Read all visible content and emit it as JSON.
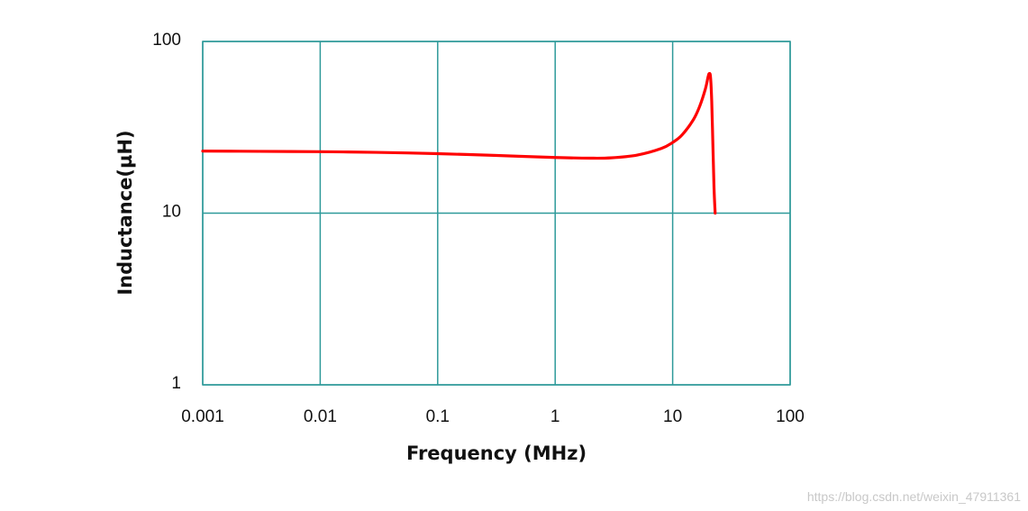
{
  "chart_data": {
    "type": "line",
    "xlabel": "Frequency (MHz)",
    "ylabel": "Inductance(µH)",
    "x_scale": "log",
    "y_scale": "log",
    "xlim": [
      0.001,
      100
    ],
    "ylim": [
      1,
      100
    ],
    "grid": true,
    "x_ticks": [
      "0.001",
      "0.01",
      "0.1",
      "1",
      "10",
      "100"
    ],
    "y_ticks": [
      "1",
      "10",
      "100"
    ],
    "series": [
      {
        "color": "#ff0000",
        "x": [
          0.001,
          0.003,
          0.01,
          0.03,
          0.1,
          0.3,
          1,
          2,
          3,
          5,
          8,
          10,
          12,
          15,
          17,
          19,
          20,
          20.5,
          21,
          21.5,
          22,
          22.5,
          23
        ],
        "y": [
          23,
          22.9,
          22.8,
          22.6,
          22.2,
          21.7,
          21.1,
          20.9,
          21.0,
          21.8,
          23.8,
          25.8,
          28.5,
          35,
          42,
          53,
          62,
          65,
          62,
          45,
          25,
          14,
          10
        ]
      }
    ],
    "colors": {
      "grid": "#2e9a9a",
      "line": "#ff0000"
    }
  },
  "watermark": "https://blog.csdn.net/weixin_47911361"
}
